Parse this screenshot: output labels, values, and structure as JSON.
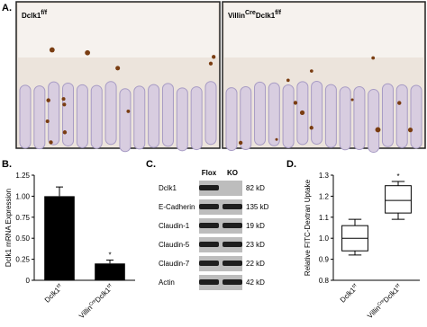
{
  "panels": {
    "a": "A.",
    "b": "B.",
    "c": "C.",
    "d": "D."
  },
  "images": [
    [
      "Dclk1",
      "f/f"
    ],
    [
      "Villin",
      "Cre",
      "Dclk1",
      "f/f"
    ]
  ],
  "blot": {
    "lanes": [
      "Flox",
      "KO"
    ],
    "rows": [
      {
        "protein": "Dclk1",
        "size": "82 kD"
      },
      {
        "protein": "E-Cadherin",
        "size": "135 kD"
      },
      {
        "protein": "Claudin-1",
        "size": "19 kD"
      },
      {
        "protein": "Claudin-5",
        "size": "23 kD"
      },
      {
        "protein": "Claudin-7",
        "size": "22 kD"
      },
      {
        "protein": "Actin",
        "size": "42 kD"
      }
    ]
  },
  "chart_data": [
    {
      "type": "bar",
      "ylabel": "Dclk1 mRNA Expression",
      "categories": [
        [
          "Dclk1",
          "f/f"
        ],
        [
          "Villin",
          "Cre",
          "Dclk1",
          "f/f"
        ]
      ],
      "values": [
        1.0,
        0.2
      ],
      "errors": [
        0.11,
        0.04
      ],
      "color": "#000000",
      "ylim": [
        0,
        1.25
      ],
      "yticks": [
        0,
        0.25,
        {
          "value": 0.5,
          "label": "0.50"
        },
        0.75,
        {
          "value": 1,
          "label": "1.00"
        },
        1.25
      ],
      "annotation": "*"
    },
    {
      "type": "box",
      "ylabel": "Relative FITC-Dextran Uptake",
      "categories": [
        [
          "Dclk1",
          "f/f"
        ],
        [
          "Villin",
          "Cre",
          "Dclk1",
          "f/f"
        ]
      ],
      "min": [
        0.92,
        1.09
      ],
      "q1": [
        0.94,
        1.12
      ],
      "median": [
        1.0,
        1.18
      ],
      "q3": [
        1.06,
        1.25
      ],
      "max": [
        1.09,
        1.27
      ],
      "color": "#ffffff",
      "ylim": [
        0.8,
        1.3
      ],
      "yticks": [
        0.8,
        0.9,
        {
          "value": 1,
          "label": "1.0"
        },
        1.1,
        1.2,
        1.3
      ],
      "annotation": "*"
    }
  ]
}
